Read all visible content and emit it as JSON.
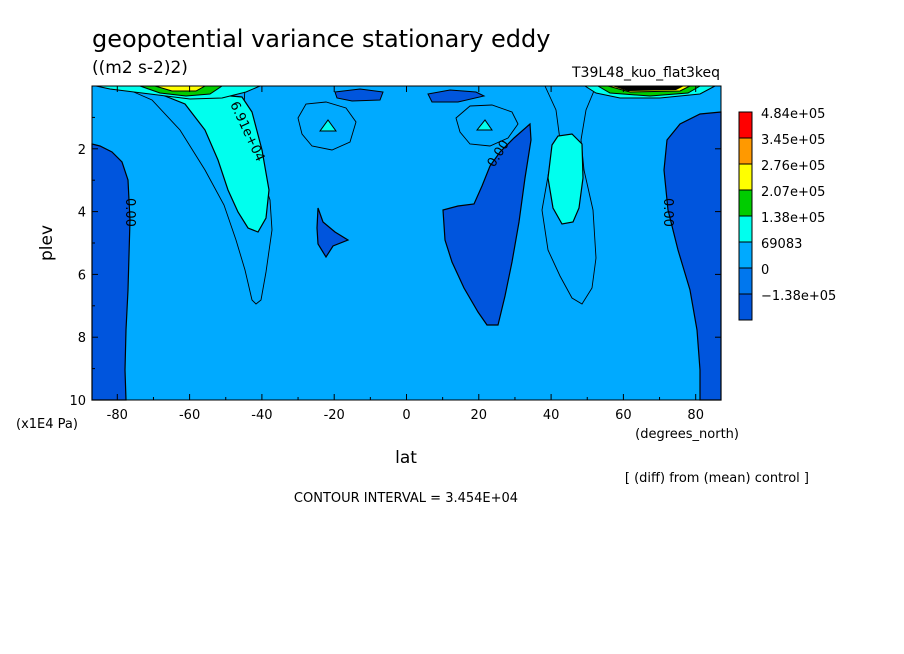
{
  "chart_data": {
    "type": "contour",
    "title": "geopotential variance stationary eddy",
    "units": "((m2 s-2)2)",
    "run": "T39L48_kuo_flat3keq",
    "xlabel": "lat",
    "xunits": "(degrees_north)",
    "ylabel": "plev",
    "yunits": "(x1E4 Pa)",
    "xlim": [
      -87,
      87
    ],
    "ylim": [
      10,
      0
    ],
    "x_ticks": [
      "-80",
      "-60",
      "-40",
      "-20",
      "0",
      "20",
      "40",
      "60",
      "80"
    ],
    "x_tick_values": [
      -80,
      -60,
      -40,
      -20,
      0,
      20,
      40,
      60,
      80
    ],
    "y_ticks": [
      "2",
      "4",
      "6",
      "8",
      "10"
    ],
    "y_tick_values": [
      2,
      4,
      6,
      8,
      10
    ],
    "legend": {
      "labels": [
        "4.84e+05",
        "3.45e+05",
        "2.76e+05",
        "2.07e+05",
        "1.38e+05",
        "69083",
        "0",
        "−1.38e+05"
      ],
      "colors": [
        "#ff0000",
        "#ff9900",
        "#ffff00",
        "#00cc00",
        "#00ffee",
        "#00aaff",
        "#0077ee",
        "#0055dd"
      ]
    },
    "contour_labels": [
      {
        "text": "6.91e+04",
        "lat": -40,
        "plev": 1.7
      },
      {
        "text": "0.00",
        "lat": 25,
        "plev": 2.2
      },
      {
        "text": "0.00",
        "lat": -79,
        "plev": 4.2
      },
      {
        "text": "0.00",
        "lat": 73,
        "plev": 4.2
      }
    ],
    "note": "[ (diff) from (mean) control ]",
    "contour_interval": "CONTOUR INTERVAL = 3.454E+04",
    "colors": {
      "background_fill": "#00aaff",
      "negative_fill": "#0055dd",
      "positive_fill": "#00ffee",
      "high_fill": "#00cc00",
      "highest_fill": "#ffff00",
      "peak_fill": "#000000"
    }
  }
}
